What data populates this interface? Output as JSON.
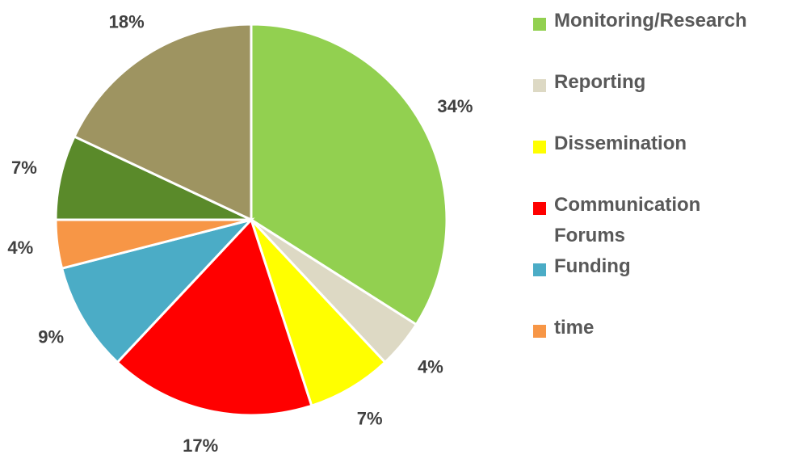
{
  "chart_data": {
    "type": "pie",
    "categories": [
      "Monitoring/Research",
      "Reporting",
      "Dissemination",
      "Communication Forums",
      "Funding",
      "time",
      null,
      null
    ],
    "values": [
      34,
      4,
      7,
      17,
      9,
      4,
      7,
      18
    ],
    "value_labels": [
      "34%",
      "4%",
      "7%",
      "17%",
      "9%",
      "4%",
      "7%",
      "18%"
    ],
    "colors": [
      "#92d050",
      "#ddd9c4",
      "#ffff00",
      "#ff0000",
      "#4bacc6",
      "#f79646",
      "#5a8a2a",
      "#9e9461"
    ],
    "legend": "right"
  }
}
